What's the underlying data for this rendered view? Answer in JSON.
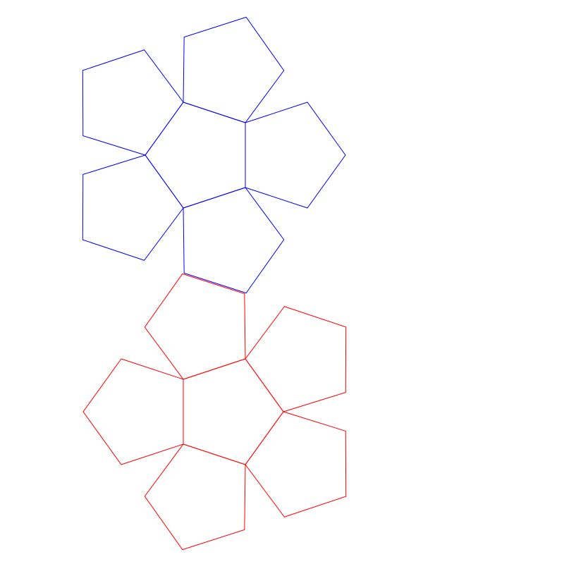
{
  "diagram": {
    "type": "dodecahedron-net",
    "groups": [
      {
        "name": "upper-half",
        "color": "#0000ff",
        "faces": [
          {
            "id": "upper-center",
            "role": "center"
          },
          {
            "id": "upper-petal-1",
            "role": "petal",
            "attached_to": "upper-center",
            "edge": 0
          },
          {
            "id": "upper-petal-2",
            "role": "petal",
            "attached_to": "upper-center",
            "edge": 1
          },
          {
            "id": "upper-petal-3",
            "role": "petal",
            "attached_to": "upper-center",
            "edge": 2
          },
          {
            "id": "upper-petal-4",
            "role": "petal",
            "attached_to": "upper-center",
            "edge": 3
          },
          {
            "id": "upper-petal-5",
            "role": "petal",
            "attached_to": "upper-center",
            "edge": 4
          }
        ]
      },
      {
        "name": "lower-half",
        "color": "#ff0000",
        "faces": [
          {
            "id": "lower-center",
            "role": "center"
          },
          {
            "id": "lower-petal-1",
            "role": "petal",
            "attached_to": "lower-center",
            "edge": 0
          },
          {
            "id": "lower-petal-2",
            "role": "petal",
            "attached_to": "lower-center",
            "edge": 1
          },
          {
            "id": "lower-petal-3",
            "role": "petal",
            "attached_to": "lower-center",
            "edge": 2
          },
          {
            "id": "lower-petal-4",
            "role": "petal",
            "attached_to": "lower-center",
            "edge": 3
          },
          {
            "id": "lower-petal-5",
            "role": "petal",
            "attached_to": "lower-center",
            "edge": 4
          }
        ]
      }
    ]
  }
}
